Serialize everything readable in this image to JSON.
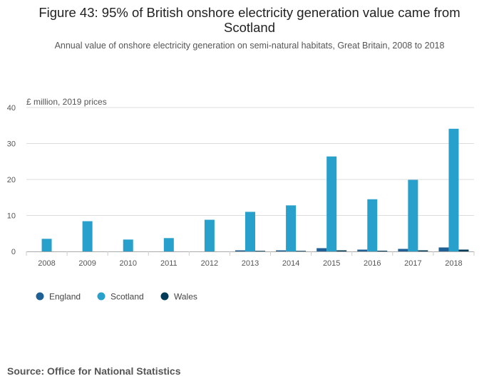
{
  "title_line1": "Figure 43: 95% of British onshore electricity generation value came from",
  "title_line2": "Scotland",
  "subtitle": "Annual value of onshore electricity generation on semi-natural habitats, Great Britain, 2008 to 2018",
  "source": "Source: Office for National Statistics",
  "colors": {
    "England": "#206095",
    "Scotland": "#27a0cc",
    "Wales": "#003c57"
  },
  "chart_data": {
    "type": "bar",
    "title": "Figure 43: 95% of British onshore electricity generation value came from Scotland",
    "ylabel": "£ million, 2019 prices",
    "xlabel": "",
    "ylim": [
      0,
      40
    ],
    "yticks": [
      0,
      10,
      20,
      30,
      40
    ],
    "categories": [
      "2008",
      "2009",
      "2010",
      "2011",
      "2012",
      "2013",
      "2014",
      "2015",
      "2016",
      "2017",
      "2018"
    ],
    "series": [
      {
        "name": "England",
        "values": [
          0.0,
          0.0,
          0.0,
          0.0,
          0.0,
          0.3,
          0.3,
          0.9,
          0.5,
          0.7,
          1.1
        ]
      },
      {
        "name": "Scotland",
        "values": [
          3.5,
          8.4,
          3.3,
          3.7,
          8.8,
          11.0,
          12.8,
          26.4,
          14.5,
          19.9,
          34.1
        ]
      },
      {
        "name": "Wales",
        "values": [
          0.0,
          0.0,
          0.0,
          0.0,
          0.0,
          0.1,
          0.1,
          0.3,
          0.2,
          0.3,
          0.5
        ]
      }
    ],
    "legend_position": "bottom-left"
  }
}
